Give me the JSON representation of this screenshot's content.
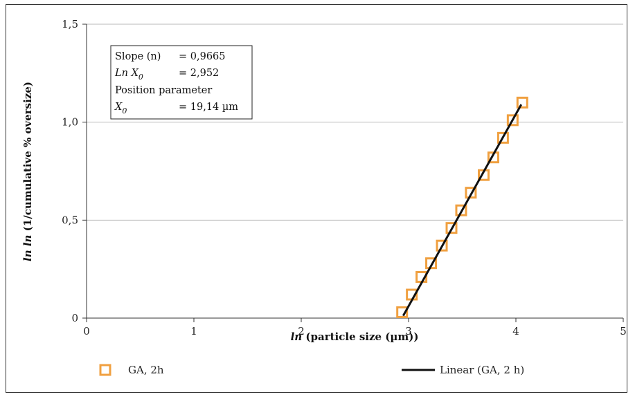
{
  "chart_data": {
    "type": "scatter",
    "title": "",
    "xlabel_parts": [
      "ln",
      " (particle size (µm))"
    ],
    "ylabel_parts": [
      "ln ln",
      " (1/cumulative % oversize)"
    ],
    "xlim": [
      0,
      5
    ],
    "ylim": [
      0,
      1.5
    ],
    "x_ticks": [
      0,
      1,
      2,
      3,
      4,
      5
    ],
    "x_tick_labels": [
      "0",
      "1",
      "2",
      "3",
      "4",
      "5"
    ],
    "y_ticks": [
      0,
      0.5,
      1.0,
      1.5
    ],
    "y_tick_labels": [
      "0",
      "0,5",
      "1,0",
      "1,5"
    ],
    "grid": "horizontal",
    "legend_position": "bottom",
    "series": [
      {
        "name": "GA, 2h",
        "kind": "markers",
        "marker": "open-square",
        "color": "#F0A040",
        "x": [
          2.94,
          3.03,
          3.12,
          3.21,
          3.31,
          3.4,
          3.49,
          3.58,
          3.7,
          3.79,
          3.88,
          3.97,
          4.06
        ],
        "y": [
          0.03,
          0.12,
          0.21,
          0.28,
          0.37,
          0.46,
          0.55,
          0.64,
          0.73,
          0.82,
          0.92,
          1.01,
          1.1
        ]
      },
      {
        "name": "Linear (GA, 2 h)",
        "kind": "line",
        "color": "#111111",
        "x": [
          2.95,
          4.05
        ],
        "y": [
          0.012,
          1.09
        ]
      }
    ],
    "annotation": {
      "rows": [
        {
          "label": "Slope (n)",
          "sub": "",
          "value": "=  0,9665"
        },
        {
          "label": "Ln X",
          "sub": "0",
          "value": "=  2,952"
        },
        {
          "label": "Position parameter",
          "sub": "",
          "value": ""
        },
        {
          "label": "X",
          "sub": "0",
          "value": "=  19,14 µm"
        }
      ]
    }
  }
}
